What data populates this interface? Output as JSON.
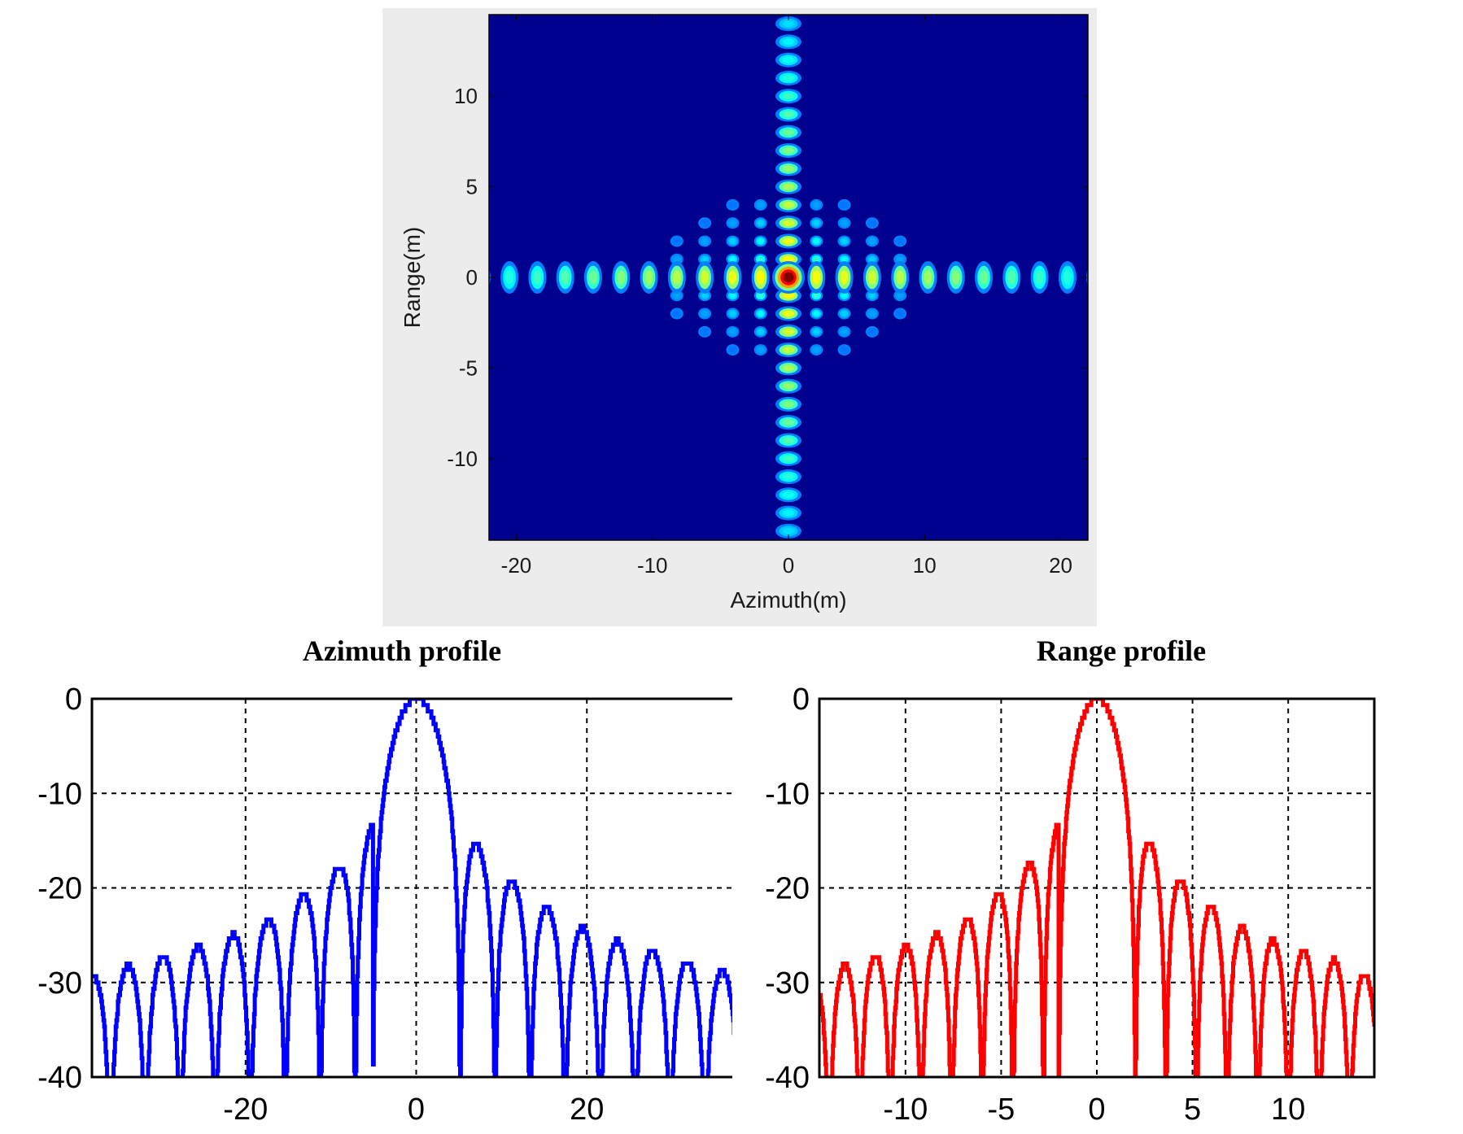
{
  "chart_data": [
    {
      "type": "heatmap",
      "title": "",
      "xlabel": "Azimuth(m)",
      "ylabel": "Range(m)",
      "xlim": [
        -22,
        22
      ],
      "ylim": [
        -14.5,
        14.5
      ],
      "xticks": [
        "-20",
        "-10",
        "0",
        "10",
        "20"
      ],
      "xtick_values": [
        -20,
        -10,
        0,
        10,
        20
      ],
      "yticks": [
        "10",
        "5",
        "0",
        "-5",
        "-10"
      ],
      "ytick_values": [
        10,
        5,
        0,
        -5,
        -10
      ],
      "colormap": "jet",
      "background_color": "#00008f",
      "peak": {
        "x": 0,
        "y": 0
      },
      "azimuth_lobe_spacing_m": 2.05,
      "range_lobe_spacing_m": 1.0,
      "grid": false
    },
    {
      "type": "line",
      "title": "Azimuth profile",
      "xlabel": "",
      "ylabel": "",
      "xlim": [
        -38,
        38
      ],
      "ylim": [
        -40,
        0
      ],
      "xticks": [
        "-20",
        "0",
        "20"
      ],
      "xtick_values": [
        -20,
        0,
        20
      ],
      "yticks": [
        "0",
        "-10",
        "-20",
        "-30",
        "-40"
      ],
      "ytick_values": [
        0,
        -10,
        -20,
        -30,
        -40
      ],
      "grid": true,
      "color": "#0000ff",
      "lobe_spacing": 4.1,
      "sidelobe_peaks": [
        {
          "x": 0,
          "y": 0
        },
        {
          "x": 5.2,
          "y": -13.3
        },
        {
          "x": 9.3,
          "y": -17.9
        },
        {
          "x": 13.4,
          "y": -20.8
        },
        {
          "x": 17.5,
          "y": -23.5
        },
        {
          "x": 21.6,
          "y": -25.0
        },
        {
          "x": 25.7,
          "y": -26.2
        },
        {
          "x": 29.8,
          "y": -27.2
        },
        {
          "x": 33.9,
          "y": -28.2
        },
        {
          "x": 37.5,
          "y": -29.2
        },
        {
          "x": -5.2,
          "y": -13.3
        },
        {
          "x": -9.3,
          "y": -17.9
        },
        {
          "x": -13.4,
          "y": -20.8
        },
        {
          "x": -17.5,
          "y": -23.5
        },
        {
          "x": -21.6,
          "y": -25.0
        },
        {
          "x": -25.7,
          "y": -26.2
        },
        {
          "x": -29.8,
          "y": -27.2
        },
        {
          "x": -33.9,
          "y": -28.2
        },
        {
          "x": -37.5,
          "y": -29.2
        }
      ]
    },
    {
      "type": "line",
      "title": "Range profile",
      "xlabel": "",
      "ylabel": "",
      "xlim": [
        -14.5,
        14.5
      ],
      "ylim": [
        -40,
        0
      ],
      "xticks": [
        "-10",
        "-5",
        "0",
        "5",
        "10"
      ],
      "xtick_values": [
        -10,
        -5,
        0,
        5,
        10
      ],
      "yticks": [
        "0",
        "-10",
        "-20",
        "-30",
        "-40"
      ],
      "ytick_values": [
        0,
        -10,
        -20,
        -30,
        -40
      ],
      "grid": true,
      "color": "#ff0000",
      "lobe_spacing": 1.6,
      "sidelobe_peaks": [
        {
          "x": 0,
          "y": 0
        },
        {
          "x": 2.1,
          "y": -13.3
        },
        {
          "x": 3.7,
          "y": -17.9
        },
        {
          "x": 5.3,
          "y": -20.8
        },
        {
          "x": 6.9,
          "y": -23.5
        },
        {
          "x": 8.5,
          "y": -25.0
        },
        {
          "x": 10.1,
          "y": -26.2
        },
        {
          "x": 11.7,
          "y": -27.2
        },
        {
          "x": 13.3,
          "y": -28.2
        },
        {
          "x": 14.4,
          "y": -29.5
        },
        {
          "x": -2.1,
          "y": -13.3
        },
        {
          "x": -3.7,
          "y": -17.9
        },
        {
          "x": -5.3,
          "y": -20.8
        },
        {
          "x": -6.9,
          "y": -23.5
        },
        {
          "x": -8.5,
          "y": -25.0
        },
        {
          "x": -10.1,
          "y": -26.2
        },
        {
          "x": -11.7,
          "y": -27.2
        },
        {
          "x": -13.3,
          "y": -28.2
        },
        {
          "x": -14.4,
          "y": -29.5
        }
      ]
    }
  ]
}
